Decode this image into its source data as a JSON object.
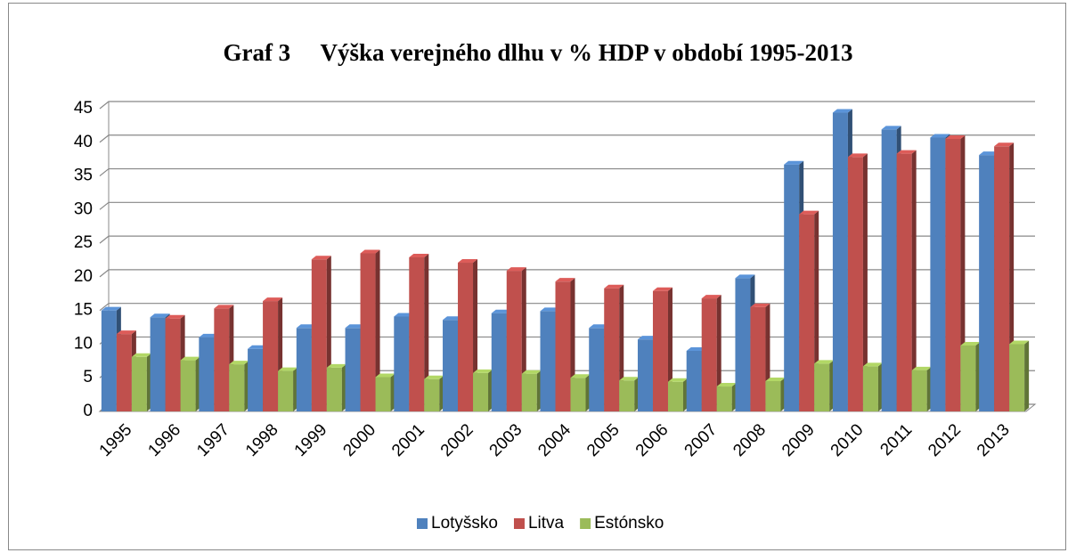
{
  "chart_data": {
    "type": "bar3d",
    "title": "Graf 3     Výška verejného dlhu v % HDP v období 1995-2013",
    "categories": [
      "1995",
      "1996",
      "1997",
      "1998",
      "1999",
      "2000",
      "2001",
      "2002",
      "2003",
      "2004",
      "2005",
      "2006",
      "2007",
      "2008",
      "2009",
      "2010",
      "2011",
      "2012",
      "2013"
    ],
    "series": [
      {
        "name": "Lotyšsko",
        "color": "#4f81bd",
        "values": [
          15.0,
          14.0,
          11.0,
          9.3,
          12.4,
          12.4,
          14.1,
          13.6,
          14.6,
          14.9,
          12.4,
          10.7,
          9.0,
          19.8,
          36.7,
          44.4,
          41.9,
          40.7,
          38.1
        ]
      },
      {
        "name": "Litva",
        "color": "#c0504d",
        "values": [
          11.5,
          13.8,
          15.3,
          16.4,
          22.6,
          23.5,
          22.9,
          22.1,
          20.9,
          19.3,
          18.3,
          17.9,
          16.8,
          15.5,
          29.3,
          37.8,
          38.3,
          40.5,
          39.4
        ]
      },
      {
        "name": "Estónsko",
        "color": "#9bbb59",
        "values": [
          8.1,
          7.6,
          7.0,
          6.0,
          6.5,
          5.1,
          4.8,
          5.7,
          5.6,
          5.0,
          4.6,
          4.4,
          3.7,
          4.5,
          7.1,
          6.7,
          6.1,
          9.8,
          10.0
        ]
      }
    ],
    "ylim": [
      0,
      45
    ],
    "yticks": [
      0,
      5,
      10,
      15,
      20,
      25,
      30,
      35,
      40,
      45
    ],
    "grid": true,
    "legend": "bottom"
  }
}
